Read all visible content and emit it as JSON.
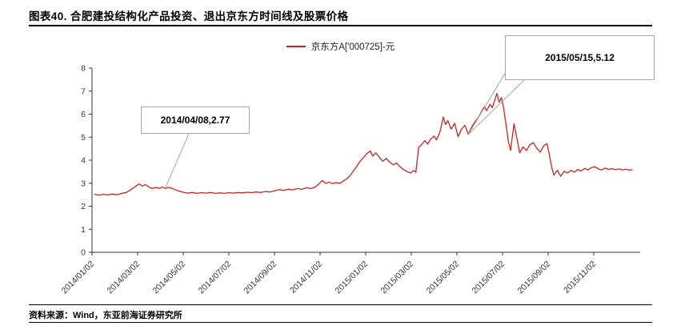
{
  "header": {
    "title": "图表40. 合肥建投结构化产品投资、退出京东方时间线及股票价格"
  },
  "legend": {
    "label": "京东方A['000725]-元"
  },
  "annotations": [
    {
      "label": "2014/04/08,2.77",
      "month": 3.2,
      "value": 2.77
    },
    {
      "label": "2015/05/15,5.12",
      "month": 16.5,
      "value": 5.12
    }
  ],
  "footer": {
    "source": "资料来源：Wind，东亚前海证券研究所"
  },
  "chart_data": {
    "type": "line",
    "title": "",
    "xlabel": "",
    "ylabel": "",
    "ylim": [
      0,
      8
    ],
    "yticks": [
      0,
      1,
      2,
      3,
      4,
      5,
      6,
      7,
      8
    ],
    "xtick_labels": [
      "2014/01/02",
      "2014/03/02",
      "2014/05/02",
      "2014/07/02",
      "2014/09/02",
      "2014/11/02",
      "2015/01/02",
      "2015/03/02",
      "2015/05/02",
      "2015/07/02",
      "2015/09/02",
      "2015/11/02"
    ],
    "grid": false,
    "legend_position": "top-center",
    "series": [
      {
        "name": "京东方A['000725]-元",
        "color": "#cc2222",
        "points": [
          [
            0.1,
            2.52
          ],
          [
            0.3,
            2.48
          ],
          [
            0.5,
            2.52
          ],
          [
            0.7,
            2.49
          ],
          [
            0.9,
            2.53
          ],
          [
            1.1,
            2.5
          ],
          [
            1.3,
            2.56
          ],
          [
            1.5,
            2.6
          ],
          [
            1.7,
            2.72
          ],
          [
            1.9,
            2.86
          ],
          [
            2.05,
            2.97
          ],
          [
            2.2,
            2.88
          ],
          [
            2.35,
            2.94
          ],
          [
            2.5,
            2.83
          ],
          [
            2.65,
            2.77
          ],
          [
            2.8,
            2.82
          ],
          [
            2.95,
            2.78
          ],
          [
            3.1,
            2.84
          ],
          [
            3.2,
            2.77
          ],
          [
            3.35,
            2.82
          ],
          [
            3.5,
            2.78
          ],
          [
            3.65,
            2.72
          ],
          [
            3.8,
            2.66
          ],
          [
            4.0,
            2.61
          ],
          [
            4.2,
            2.57
          ],
          [
            4.4,
            2.6
          ],
          [
            4.6,
            2.56
          ],
          [
            4.8,
            2.59
          ],
          [
            5.0,
            2.57
          ],
          [
            5.2,
            2.6
          ],
          [
            5.4,
            2.56
          ],
          [
            5.6,
            2.58
          ],
          [
            5.8,
            2.56
          ],
          [
            6.0,
            2.59
          ],
          [
            6.2,
            2.57
          ],
          [
            6.4,
            2.6
          ],
          [
            6.6,
            2.58
          ],
          [
            6.8,
            2.61
          ],
          [
            7.0,
            2.59
          ],
          [
            7.2,
            2.62
          ],
          [
            7.4,
            2.6
          ],
          [
            7.6,
            2.64
          ],
          [
            7.8,
            2.62
          ],
          [
            8.0,
            2.67
          ],
          [
            8.2,
            2.72
          ],
          [
            8.4,
            2.69
          ],
          [
            8.6,
            2.74
          ],
          [
            8.8,
            2.71
          ],
          [
            9.0,
            2.77
          ],
          [
            9.2,
            2.74
          ],
          [
            9.4,
            2.8
          ],
          [
            9.6,
            2.77
          ],
          [
            9.8,
            2.84
          ],
          [
            10.0,
            3.02
          ],
          [
            10.1,
            3.12
          ],
          [
            10.25,
            2.99
          ],
          [
            10.4,
            3.05
          ],
          [
            10.55,
            2.98
          ],
          [
            10.7,
            3.03
          ],
          [
            10.85,
            2.99
          ],
          [
            11.0,
            3.08
          ],
          [
            11.15,
            3.18
          ],
          [
            11.3,
            3.32
          ],
          [
            11.45,
            3.52
          ],
          [
            11.6,
            3.72
          ],
          [
            11.75,
            3.95
          ],
          [
            11.9,
            4.12
          ],
          [
            12.05,
            4.28
          ],
          [
            12.2,
            4.4
          ],
          [
            12.3,
            4.18
          ],
          [
            12.45,
            4.32
          ],
          [
            12.6,
            4.12
          ],
          [
            12.75,
            3.95
          ],
          [
            12.9,
            4.08
          ],
          [
            13.05,
            3.92
          ],
          [
            13.2,
            3.8
          ],
          [
            13.35,
            3.88
          ],
          [
            13.5,
            3.72
          ],
          [
            13.65,
            3.6
          ],
          [
            13.8,
            3.52
          ],
          [
            13.95,
            3.44
          ],
          [
            14.1,
            3.55
          ],
          [
            14.2,
            3.48
          ],
          [
            14.32,
            4.55
          ],
          [
            14.45,
            4.68
          ],
          [
            14.6,
            4.85
          ],
          [
            14.72,
            4.7
          ],
          [
            14.85,
            4.92
          ],
          [
            15.0,
            5.05
          ],
          [
            15.1,
            4.88
          ],
          [
            15.25,
            5.2
          ],
          [
            15.4,
            5.88
          ],
          [
            15.5,
            5.55
          ],
          [
            15.6,
            5.72
          ],
          [
            15.75,
            5.35
          ],
          [
            15.9,
            5.6
          ],
          [
            16.05,
            5.02
          ],
          [
            16.2,
            5.35
          ],
          [
            16.35,
            5.52
          ],
          [
            16.5,
            5.12
          ],
          [
            16.65,
            5.45
          ],
          [
            16.8,
            5.68
          ],
          [
            16.95,
            5.88
          ],
          [
            17.1,
            6.15
          ],
          [
            17.2,
            6.32
          ],
          [
            17.3,
            6.15
          ],
          [
            17.45,
            6.42
          ],
          [
            17.55,
            6.28
          ],
          [
            17.65,
            6.58
          ],
          [
            17.75,
            6.9
          ],
          [
            17.85,
            6.52
          ],
          [
            17.95,
            6.72
          ],
          [
            18.05,
            6.25
          ],
          [
            18.15,
            5.55
          ],
          [
            18.25,
            4.85
          ],
          [
            18.35,
            4.42
          ],
          [
            18.5,
            5.58
          ],
          [
            18.65,
            4.85
          ],
          [
            18.75,
            4.32
          ],
          [
            18.9,
            4.58
          ],
          [
            19.05,
            4.42
          ],
          [
            19.2,
            4.68
          ],
          [
            19.35,
            4.76
          ],
          [
            19.5,
            4.52
          ],
          [
            19.65,
            4.35
          ],
          [
            19.8,
            4.62
          ],
          [
            19.95,
            4.72
          ],
          [
            20.05,
            4.25
          ],
          [
            20.15,
            3.72
          ],
          [
            20.25,
            3.35
          ],
          [
            20.4,
            3.56
          ],
          [
            20.55,
            3.3
          ],
          [
            20.7,
            3.52
          ],
          [
            20.85,
            3.44
          ],
          [
            21.0,
            3.56
          ],
          [
            21.15,
            3.48
          ],
          [
            21.3,
            3.6
          ],
          [
            21.45,
            3.53
          ],
          [
            21.6,
            3.64
          ],
          [
            21.75,
            3.58
          ],
          [
            21.9,
            3.68
          ],
          [
            22.05,
            3.72
          ],
          [
            22.2,
            3.62
          ],
          [
            22.35,
            3.58
          ],
          [
            22.5,
            3.66
          ],
          [
            22.65,
            3.6
          ],
          [
            22.8,
            3.63
          ],
          [
            22.95,
            3.59
          ],
          [
            23.1,
            3.62
          ],
          [
            23.25,
            3.58
          ],
          [
            23.4,
            3.61
          ],
          [
            23.55,
            3.57
          ],
          [
            23.7,
            3.59
          ]
        ]
      }
    ]
  }
}
